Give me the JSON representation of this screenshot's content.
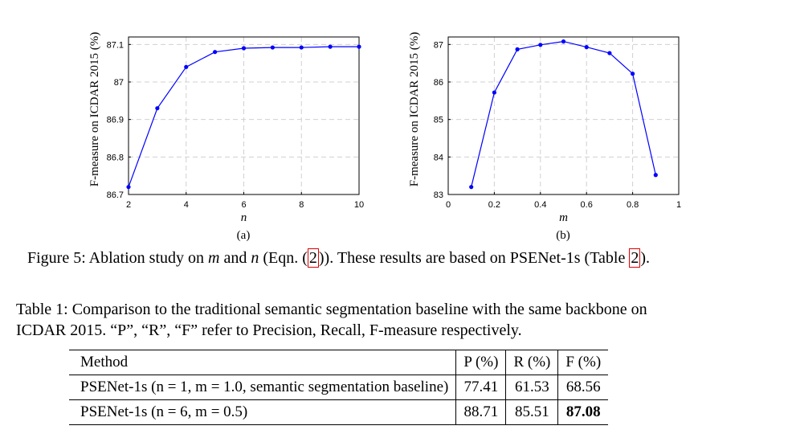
{
  "chart_data": [
    {
      "type": "line",
      "panel": "(a)",
      "xlabel": "n",
      "ylabel": "F-measure on ICDAR 2015 (%)",
      "x": [
        2,
        3,
        4,
        5,
        6,
        7,
        8,
        9,
        10
      ],
      "y": [
        86.72,
        86.93,
        87.04,
        87.08,
        87.09,
        87.092,
        87.092,
        87.094,
        87.094
      ],
      "xlim": [
        2,
        10
      ],
      "ylim": [
        86.7,
        87.12
      ],
      "xticks": [
        "2",
        "4",
        "6",
        "8",
        "10"
      ],
      "xtick_values": [
        2,
        4,
        6,
        8,
        10
      ],
      "yticks": [
        "86.7",
        "86.8",
        "86.9",
        "87",
        "87.1"
      ],
      "ytick_values": [
        86.7,
        86.8,
        86.9,
        87.0,
        87.1
      ],
      "color": "#0000ff",
      "grid": true
    },
    {
      "type": "line",
      "panel": "(b)",
      "xlabel": "m",
      "ylabel": "F-measure on ICDAR 2015 (%)",
      "x": [
        0.1,
        0.2,
        0.3,
        0.4,
        0.5,
        0.6,
        0.7,
        0.8,
        0.9
      ],
      "y": [
        83.2,
        85.72,
        86.87,
        86.99,
        87.08,
        86.93,
        86.77,
        86.22,
        83.52
      ],
      "xlim": [
        0,
        1
      ],
      "ylim": [
        83,
        87.2
      ],
      "xticks": [
        "0",
        "0.2",
        "0.4",
        "0.6",
        "0.8",
        "1"
      ],
      "xtick_values": [
        0,
        0.2,
        0.4,
        0.6,
        0.8,
        1
      ],
      "yticks": [
        "83",
        "84",
        "85",
        "86",
        "87"
      ],
      "ytick_values": [
        83,
        84,
        85,
        86,
        87
      ],
      "color": "#0000ff",
      "grid": true
    }
  ],
  "figure": {
    "caption_prefix": "Figure 5: Ablation study on ",
    "var_m": "m",
    "and": " and ",
    "var_n": "n",
    "eqn_open": " (Eqn. (",
    "eqn_ref": "2",
    "eqn_close": ")). These results are based on PSENet-1s (Table ",
    "table_ref": "2",
    "end": ")."
  },
  "table_caption": {
    "line1": "Table 1: Comparison to the traditional semantic segmentation baseline with the same backbone on",
    "line2": "ICDAR 2015. “P”, “R”, “F” refer to Precision, Recall, F-measure respectively."
  },
  "table": {
    "headers": [
      "Method",
      "P (%)",
      "R (%)",
      "F (%)"
    ],
    "rows": [
      {
        "method": "PSENet-1s (n = 1, m = 1.0, semantic segmentation baseline)",
        "p": "77.41",
        "r": "61.53",
        "f": "68.56"
      },
      {
        "method": "PSENet-1s (n = 6, m = 0.5)",
        "p": "88.71",
        "r": "85.51",
        "f": "87.08"
      }
    ]
  }
}
